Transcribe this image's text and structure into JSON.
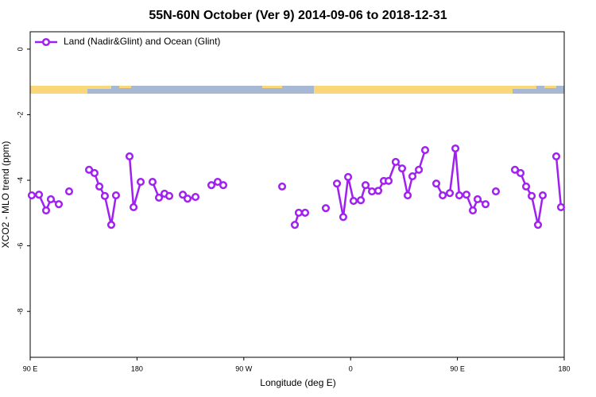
{
  "chart_data": {
    "type": "line",
    "title": "55N-60N October (Ver 9)   2014-09-06 to 2018-12-31",
    "x_label": "Longitude (deg E)",
    "y_label": "XCO2 - MLO trend (ppm)",
    "xlim": [
      90,
      540
    ],
    "ylim": [
      -9.4,
      0.53
    ],
    "xticks": [
      {
        "value": 90,
        "label": "90 E"
      },
      {
        "value": 180,
        "label": "180"
      },
      {
        "value": 270,
        "label": "90 W"
      },
      {
        "value": 360,
        "label": "0"
      },
      {
        "value": 450,
        "label": "90 E"
      },
      {
        "value": 540,
        "label": "180"
      }
    ],
    "yticks": [
      0,
      -2,
      -4,
      -6,
      -8
    ],
    "legend": "top-left",
    "series": [
      {
        "name": "Land (Nadir&Glint) and Ocean (Glint)",
        "color": "#a020f0",
        "x": [
          91.3,
          97.4,
          103.4,
          107.4,
          114.1,
          118.5,
          122.8,
          131.2,
          139.6,
          144.2,
          148.3,
          152.9,
          158.3,
          162.3,
          168.0,
          173.7,
          177.1,
          183.1,
          188.1,
          193.1,
          198.5,
          203.2,
          207.2,
          212.9,
          218.6,
          222.6,
          229.3,
          236.0,
          242.7,
          248.0,
          252.7,
          277.5,
          302.3,
          307.6,
          313.0,
          316.3,
          321.7,
          330.4,
          339.1,
          343.8,
          348.5,
          353.8,
          357.9,
          362.5,
          368.6,
          372.6,
          378.0,
          383.3,
          388.0,
          392.0,
          398.0,
          403.4,
          408.1,
          412.1,
          417.5,
          422.8,
          427.5,
          432.2,
          437.6,
          443.6,
          448.3,
          451.6,
          457.6,
          463.0,
          467.0,
          473.7,
          478.0,
          482.4,
          490.4,
          498.5,
          503.2,
          507.9,
          512.6,
          517.9,
          521.9,
          527.6,
          533.3,
          537.3
        ],
        "values": [
          -4.46,
          -4.44,
          -4.92,
          -4.58,
          -4.73,
          null,
          -4.34,
          null,
          -3.68,
          -3.78,
          -4.19,
          -4.48,
          -5.36,
          -4.46,
          null,
          -3.27,
          -4.82,
          -4.05,
          null,
          -4.05,
          -4.53,
          -4.41,
          -4.48,
          null,
          -4.44,
          -4.56,
          -4.51,
          null,
          -4.15,
          -4.05,
          -4.15,
          null,
          -4.19,
          null,
          -5.36,
          -4.99,
          -4.99,
          null,
          -4.85,
          null,
          -4.1,
          -5.12,
          -3.9,
          -4.63,
          -4.61,
          -4.15,
          -4.34,
          -4.32,
          -4.02,
          -4.02,
          -3.44,
          -3.64,
          -4.46,
          -3.88,
          -3.68,
          -3.08,
          null,
          -4.1,
          -4.46,
          -4.39,
          -3.03,
          -4.46,
          -4.44,
          -4.92,
          -4.58,
          -4.73,
          null,
          -4.34,
          null,
          -3.68,
          -3.78,
          -4.19,
          -4.48,
          -5.36,
          -4.46,
          null,
          -3.27,
          -4.82
        ]
      }
    ]
  }
}
